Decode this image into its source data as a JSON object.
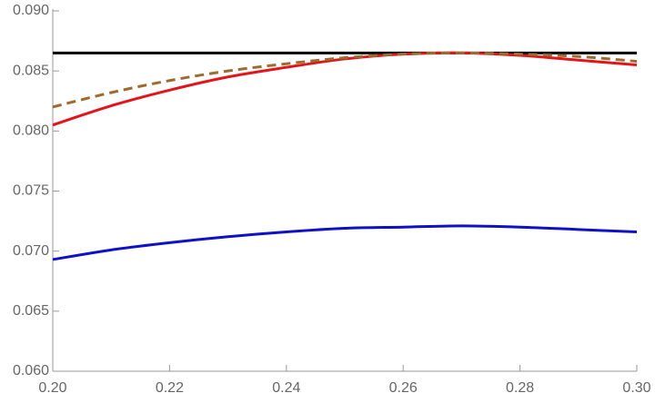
{
  "chart_data": {
    "type": "line",
    "x": [
      0.2,
      0.21,
      0.22,
      0.23,
      0.24,
      0.25,
      0.26,
      0.27,
      0.28,
      0.29,
      0.3
    ],
    "series": [
      {
        "color": "#000000",
        "dash": false,
        "values": [
          0.0865,
          0.0865,
          0.0865,
          0.0865,
          0.0865,
          0.0865,
          0.0865,
          0.0865,
          0.0865,
          0.0865,
          0.0865
        ]
      },
      {
        "color": "#e0161a",
        "dash": false,
        "values": [
          0.0805,
          0.0821,
          0.0834,
          0.0845,
          0.0853,
          0.086,
          0.0864,
          0.0865,
          0.0863,
          0.0859,
          0.0855
        ]
      },
      {
        "color": "#9c6b30",
        "dash": true,
        "values": [
          0.082,
          0.0832,
          0.0842,
          0.085,
          0.0856,
          0.0861,
          0.0864,
          0.0865,
          0.0864,
          0.0862,
          0.0858
        ]
      },
      {
        "color": "#1010c8",
        "dash": false,
        "values": [
          0.0693,
          0.0701,
          0.0707,
          0.0712,
          0.0716,
          0.0719,
          0.072,
          0.0721,
          0.072,
          0.0718,
          0.0716
        ]
      }
    ],
    "xlim": [
      0.2,
      0.3
    ],
    "ylim": [
      0.06,
      0.09
    ],
    "xticks": [
      {
        "value": 0.2,
        "label": "0.20"
      },
      {
        "value": 0.22,
        "label": "0.22"
      },
      {
        "value": 0.24,
        "label": "0.24"
      },
      {
        "value": 0.26,
        "label": "0.26"
      },
      {
        "value": 0.28,
        "label": "0.28"
      },
      {
        "value": 0.3,
        "label": "0.30"
      }
    ],
    "yticks": [
      {
        "value": 0.06,
        "label": "0.060"
      },
      {
        "value": 0.065,
        "label": "0.065"
      },
      {
        "value": 0.07,
        "label": "0.070"
      },
      {
        "value": 0.075,
        "label": "0.075"
      },
      {
        "value": 0.08,
        "label": "0.080"
      },
      {
        "value": 0.085,
        "label": "0.085"
      },
      {
        "value": 0.09,
        "label": "0.090"
      }
    ],
    "grid": false
  }
}
